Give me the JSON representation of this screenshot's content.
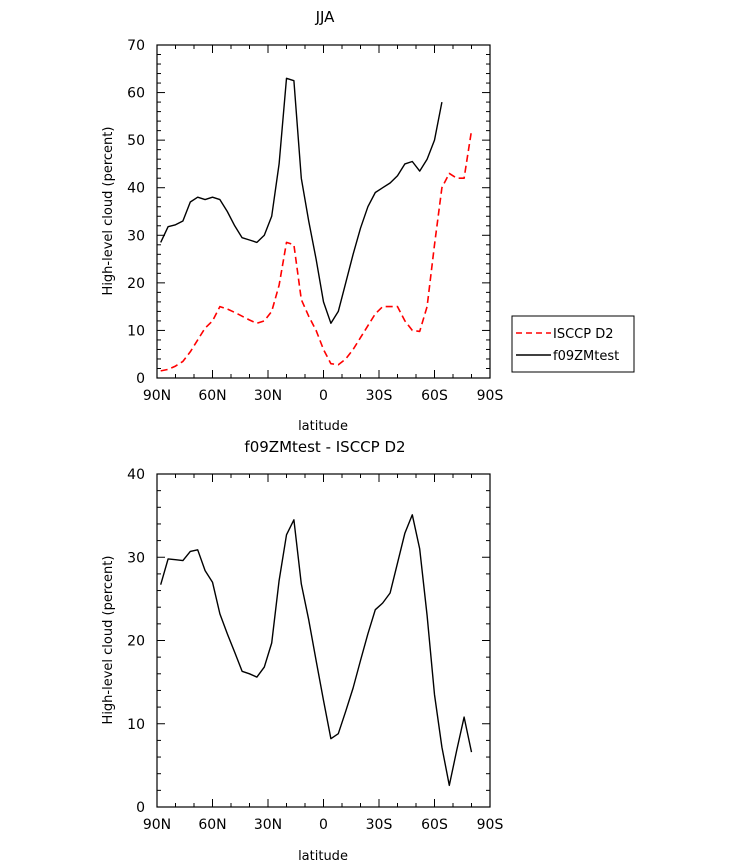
{
  "chart_data": [
    {
      "type": "line",
      "title": "JJA",
      "xlabel": "latitude",
      "ylabel": "High-level cloud (percent)",
      "xlim": [
        90,
        -90
      ],
      "ylim": [
        0,
        70
      ],
      "xtick_values": [
        90,
        60,
        30,
        0,
        -30,
        -60,
        -90
      ],
      "xtick_labels": [
        "90N",
        "60N",
        "30N",
        "0",
        "30S",
        "60S",
        "90S"
      ],
      "ytick_values": [
        0,
        10,
        20,
        30,
        40,
        50,
        60,
        70
      ],
      "ytick_labels": [
        "0",
        "10",
        "20",
        "30",
        "40",
        "50",
        "60",
        "70"
      ],
      "grid": false,
      "legend": "right",
      "x": [
        88,
        84,
        80,
        76,
        72,
        68,
        64,
        60,
        56,
        52,
        48,
        44,
        40,
        36,
        32,
        28,
        24,
        20,
        16,
        12,
        8,
        4,
        0,
        -4,
        -8,
        -12,
        -16,
        -20,
        -24,
        -28,
        -32,
        -36,
        -40,
        -44,
        -48,
        -52,
        -56,
        -60,
        -64,
        -68,
        -72,
        -76,
        -80,
        -84,
        -88
      ],
      "series": [
        {
          "name": "ISCCP D2",
          "color": "#ff0000",
          "dash": "dashed",
          "values": [
            1.5,
            1.8,
            2.5,
            3.5,
            5.5,
            8.0,
            10.5,
            12.0,
            15.0,
            14.5,
            13.8,
            13.0,
            12.2,
            11.5,
            12.0,
            14.0,
            19.5,
            28.5,
            28.0,
            16.5,
            13.0,
            10.0,
            6.0,
            3.0,
            2.8,
            4.0,
            6.0,
            8.5,
            11.0,
            13.5,
            15.0,
            15.0,
            15.0,
            12.0,
            10.0,
            9.8,
            15.0,
            28.0,
            40.0,
            43.0,
            42.0,
            42.0,
            52.0,
            null,
            null
          ]
        },
        {
          "name": "f09ZMtest",
          "color": "#000000",
          "dash": "solid",
          "values": [
            28.5,
            31.8,
            32.2,
            33.0,
            37.0,
            38.0,
            37.5,
            38.0,
            37.5,
            35.0,
            32.0,
            29.5,
            29.0,
            28.5,
            30.0,
            34.0,
            45.0,
            63.0,
            62.5,
            42.0,
            33.0,
            25.0,
            16.0,
            11.5,
            14.0,
            20.0,
            26.0,
            31.5,
            36.0,
            39.0,
            40.0,
            41.0,
            42.5,
            45.0,
            45.5,
            43.5,
            46.0,
            50.0,
            58.0,
            null,
            null,
            null,
            null,
            null,
            null
          ]
        }
      ]
    },
    {
      "type": "line",
      "title": "f09ZMtest - ISCCP D2",
      "xlabel": "latitude",
      "ylabel": "High-level cloud (percent)",
      "xlim": [
        90,
        -90
      ],
      "ylim": [
        0,
        40
      ],
      "xtick_values": [
        90,
        60,
        30,
        0,
        -30,
        -60,
        -90
      ],
      "xtick_labels": [
        "90N",
        "60N",
        "30N",
        "0",
        "30S",
        "60S",
        "90S"
      ],
      "ytick_values": [
        0,
        10,
        20,
        30,
        40
      ],
      "ytick_labels": [
        "0",
        "10",
        "20",
        "30",
        "40"
      ],
      "grid": false,
      "legend": "none",
      "x": [
        88,
        84,
        80,
        76,
        72,
        68,
        64,
        60,
        56,
        52,
        48,
        44,
        40,
        36,
        32,
        28,
        24,
        20,
        16,
        12,
        8,
        4,
        0,
        -4,
        -8,
        -12,
        -16,
        -20,
        -24,
        -28,
        -32,
        -36,
        -40,
        -44,
        -48,
        -52,
        -56,
        -60,
        -64,
        -68,
        -72,
        -76,
        -80,
        -84,
        -88
      ],
      "series": [
        {
          "name": "",
          "color": "#000000",
          "dash": "solid",
          "values": [
            26.7,
            29.8,
            29.7,
            29.6,
            30.7,
            30.9,
            28.4,
            27.0,
            23.2,
            20.8,
            18.6,
            16.3,
            16.0,
            15.6,
            16.8,
            19.7,
            27.2,
            32.7,
            34.5,
            26.8,
            22.5,
            17.6,
            12.8,
            8.2,
            8.8,
            11.5,
            14.3,
            17.6,
            20.8,
            23.7,
            24.5,
            25.7,
            29.3,
            32.9,
            35.1,
            31.0,
            23.0,
            13.5,
            7.2,
            2.6,
            6.8,
            10.8,
            6.6,
            null,
            null
          ]
        }
      ]
    }
  ],
  "legend_entries": [
    {
      "label": "ISCCP D2",
      "color": "#ff0000",
      "dash": "dashed"
    },
    {
      "label": "f09ZMtest",
      "color": "#000000",
      "dash": "solid"
    }
  ]
}
